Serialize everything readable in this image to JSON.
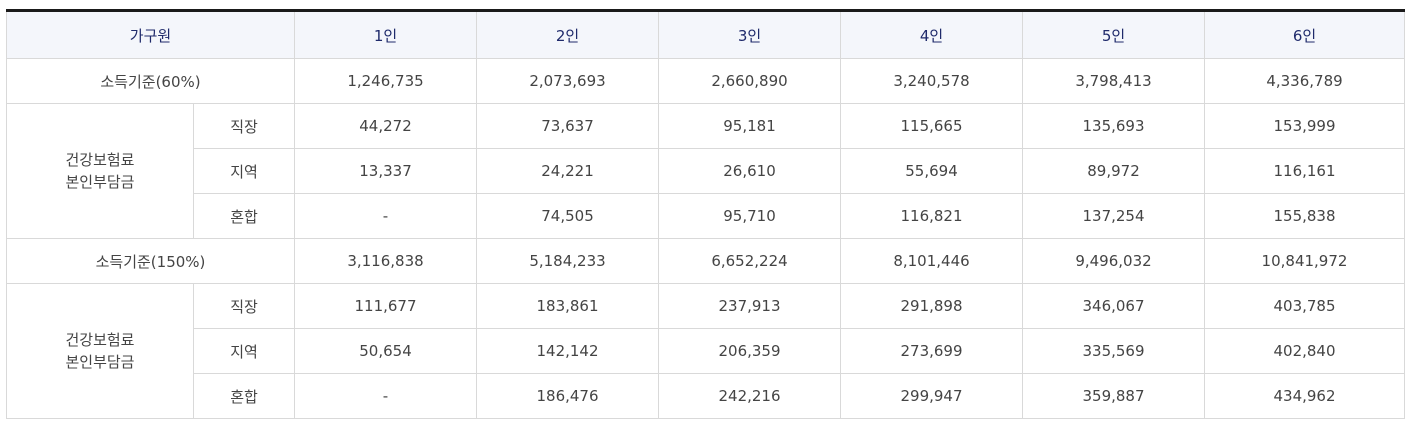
{
  "header": {
    "household": "가구원",
    "columns": [
      "1인",
      "2인",
      "3인",
      "4인",
      "5인",
      "6인"
    ]
  },
  "sections": [
    {
      "income_label": "소득기준(60%)",
      "income_values": [
        "1,246,735",
        "2,073,693",
        "2,660,890",
        "3,240,578",
        "3,798,413",
        "4,336,789"
      ],
      "premium_label_line1": "건강보험료",
      "premium_label_line2": "본인부담금",
      "rows": [
        {
          "type": "직장",
          "values": [
            "44,272",
            "73,637",
            "95,181",
            "115,665",
            "135,693",
            "153,999"
          ]
        },
        {
          "type": "지역",
          "values": [
            "13,337",
            "24,221",
            "26,610",
            "55,694",
            "89,972",
            "116,161"
          ]
        },
        {
          "type": "혼합",
          "values": [
            "-",
            "74,505",
            "95,710",
            "116,821",
            "137,254",
            "155,838"
          ]
        }
      ]
    },
    {
      "income_label": "소득기준(150%)",
      "income_values": [
        "3,116,838",
        "5,184,233",
        "6,652,224",
        "8,101,446",
        "9,496,032",
        "10,841,972"
      ],
      "premium_label_line1": "건강보험료",
      "premium_label_line2": "본인부담금",
      "rows": [
        {
          "type": "직장",
          "values": [
            "111,677",
            "183,861",
            "237,913",
            "291,898",
            "346,067",
            "403,785"
          ]
        },
        {
          "type": "지역",
          "values": [
            "50,654",
            "142,142",
            "206,359",
            "273,699",
            "335,569",
            "402,840"
          ]
        },
        {
          "type": "혼합",
          "values": [
            "-",
            "186,476",
            "242,216",
            "299,947",
            "359,887",
            "434,962"
          ]
        }
      ]
    }
  ]
}
